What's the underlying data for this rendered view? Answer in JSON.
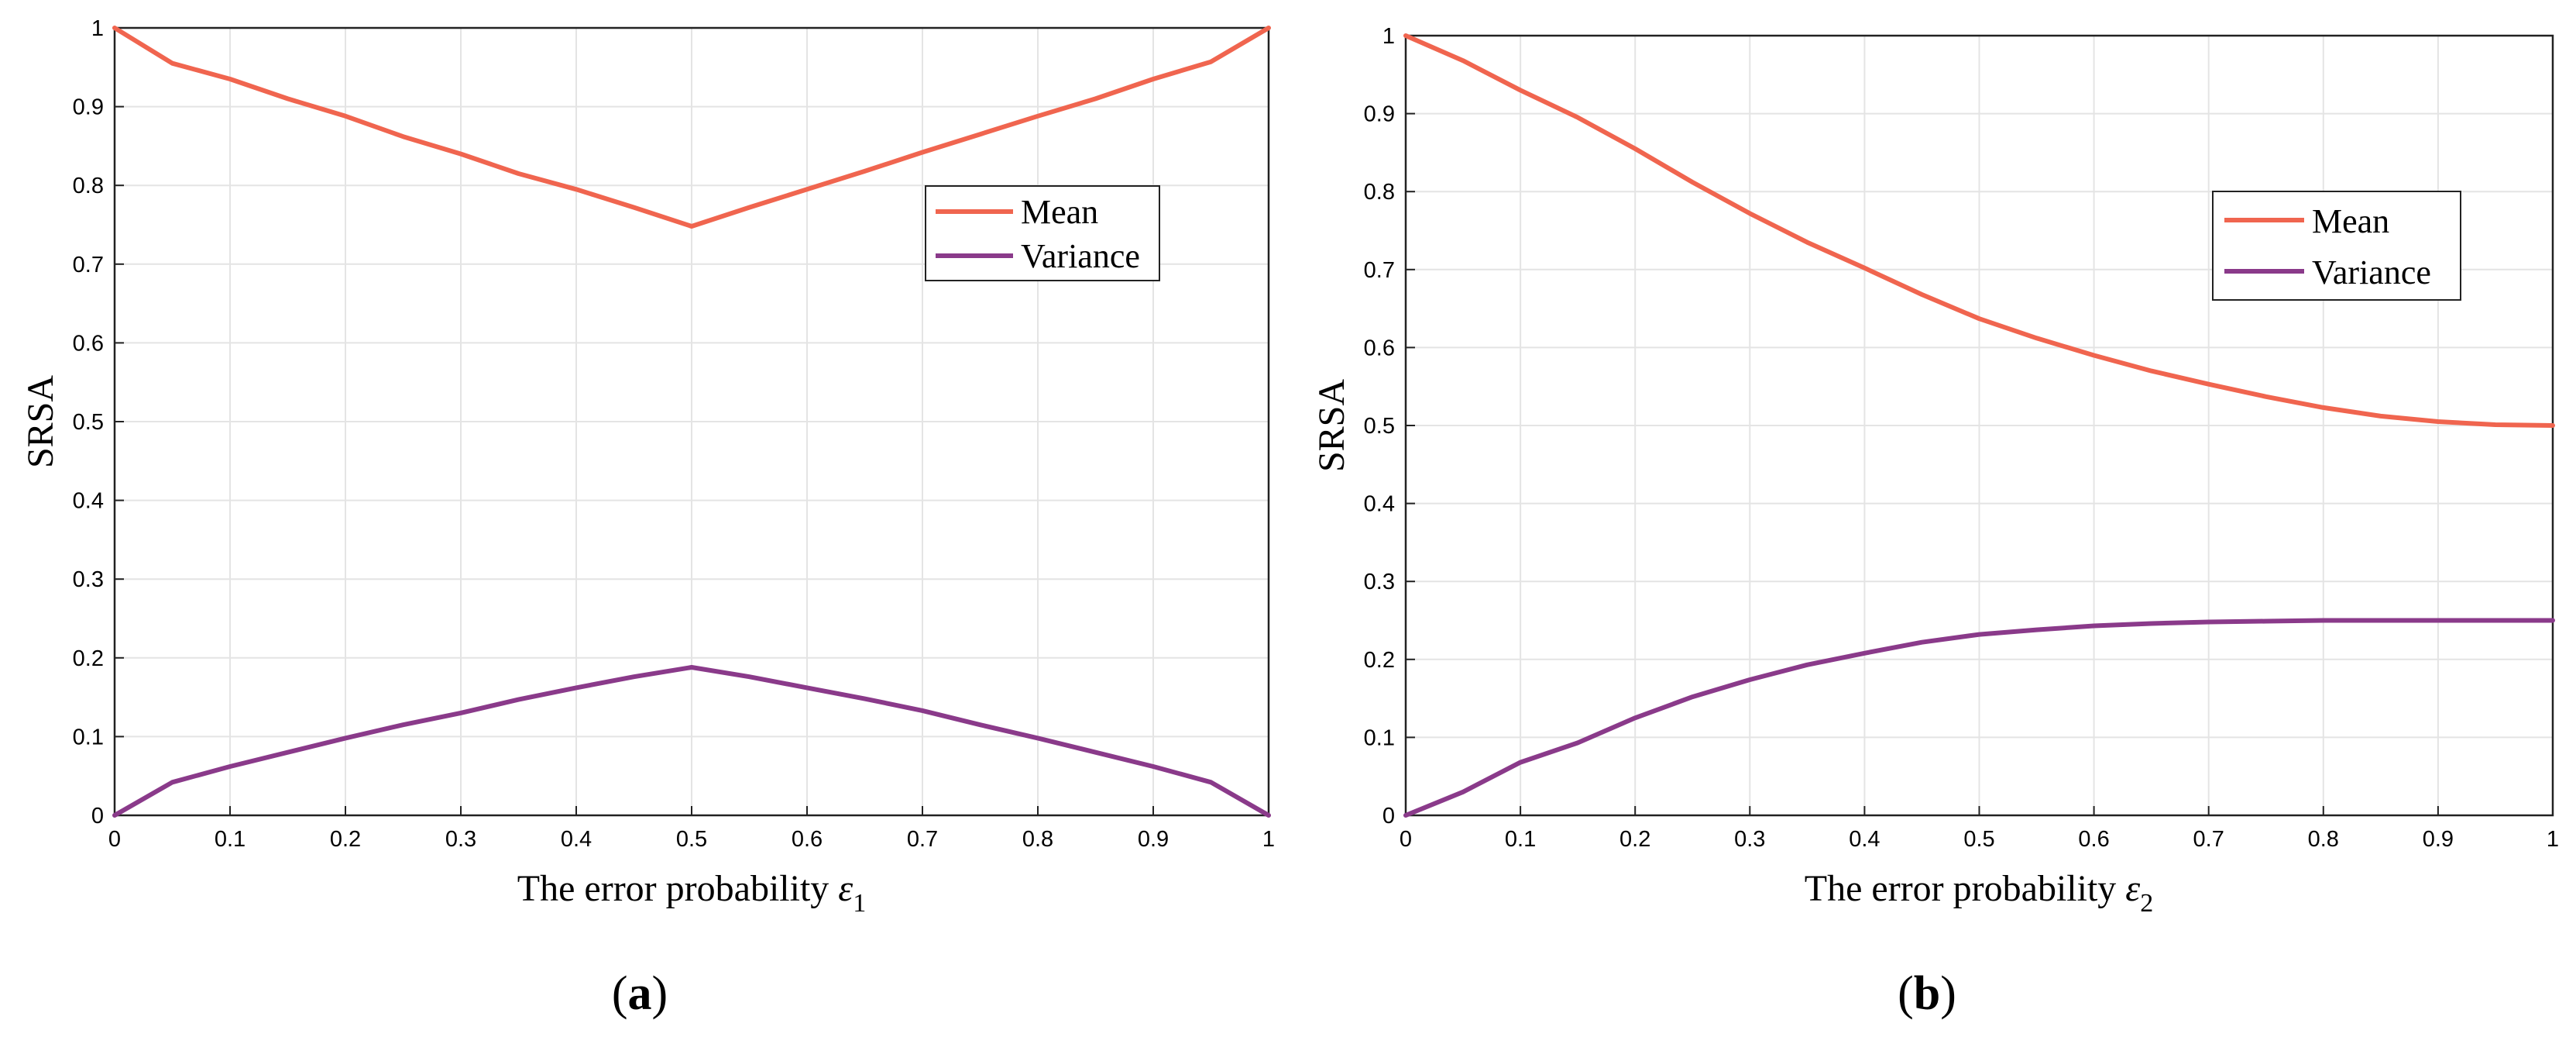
{
  "colors": {
    "mean": "#f0654f",
    "variance": "#8a3a8a",
    "grid": "#e4e4e4",
    "axis": "#222222"
  },
  "charts": [
    {
      "panel": "a",
      "caption_open": "(",
      "caption_letter": "a",
      "caption_close": ")",
      "xlabel_text": "The error probability ",
      "xlabel_symbol": "ε",
      "xlabel_sub": "1",
      "ylabel": "SRSA",
      "x_ticks": [
        "0",
        "0.1",
        "0.2",
        "0.3",
        "0.4",
        "0.5",
        "0.6",
        "0.7",
        "0.8",
        "0.9",
        "1"
      ],
      "y_ticks": [
        "0",
        "0.1",
        "0.2",
        "0.3",
        "0.4",
        "0.5",
        "0.6",
        "0.7",
        "0.8",
        "0.9",
        "1"
      ],
      "legend": [
        "Mean",
        "Variance"
      ]
    },
    {
      "panel": "b",
      "caption_open": "(",
      "caption_letter": "b",
      "caption_close": ")",
      "xlabel_text": "The error probability ",
      "xlabel_symbol": "ε",
      "xlabel_sub": "2",
      "ylabel": "SRSA",
      "x_ticks": [
        "0",
        "0.1",
        "0.2",
        "0.3",
        "0.4",
        "0.5",
        "0.6",
        "0.7",
        "0.8",
        "0.9",
        "1"
      ],
      "y_ticks": [
        "0",
        "0.1",
        "0.2",
        "0.3",
        "0.4",
        "0.5",
        "0.6",
        "0.7",
        "0.8",
        "0.9",
        "1"
      ],
      "legend": [
        "Mean",
        "Variance"
      ]
    }
  ],
  "chart_data": [
    {
      "type": "line",
      "title": "(a)",
      "xlabel": "The error probability ε1",
      "ylabel": "SRSA",
      "xlim": [
        0,
        1
      ],
      "ylim": [
        0,
        1
      ],
      "grid": true,
      "legend_position": "upper-right",
      "x": [
        0,
        0.05,
        0.1,
        0.15,
        0.2,
        0.25,
        0.3,
        0.35,
        0.4,
        0.45,
        0.5,
        0.55,
        0.6,
        0.65,
        0.7,
        0.75,
        0.8,
        0.85,
        0.9,
        0.95,
        1
      ],
      "series": [
        {
          "name": "Mean",
          "values": [
            1.0,
            0.955,
            0.935,
            0.91,
            0.888,
            0.862,
            0.84,
            0.815,
            0.795,
            0.772,
            0.748,
            0.772,
            0.795,
            0.818,
            0.842,
            0.865,
            0.888,
            0.91,
            0.935,
            0.957,
            1.0
          ]
        },
        {
          "name": "Variance",
          "values": [
            0.0,
            0.042,
            0.062,
            0.08,
            0.098,
            0.115,
            0.13,
            0.147,
            0.162,
            0.176,
            0.188,
            0.176,
            0.162,
            0.148,
            0.133,
            0.115,
            0.098,
            0.08,
            0.062,
            0.042,
            0.0
          ]
        }
      ]
    },
    {
      "type": "line",
      "title": "(b)",
      "xlabel": "The error probability ε2",
      "ylabel": "SRSA",
      "xlim": [
        0,
        1
      ],
      "ylim": [
        0,
        1
      ],
      "grid": true,
      "legend_position": "upper-right",
      "x": [
        0,
        0.05,
        0.1,
        0.15,
        0.2,
        0.25,
        0.3,
        0.35,
        0.4,
        0.45,
        0.5,
        0.55,
        0.6,
        0.65,
        0.7,
        0.75,
        0.8,
        0.85,
        0.9,
        0.95,
        1
      ],
      "series": [
        {
          "name": "Mean",
          "values": [
            1.0,
            0.968,
            0.93,
            0.895,
            0.855,
            0.812,
            0.772,
            0.735,
            0.702,
            0.668,
            0.637,
            0.612,
            0.59,
            0.57,
            0.553,
            0.537,
            0.523,
            0.512,
            0.505,
            0.501,
            0.5
          ]
        },
        {
          "name": "Variance",
          "values": [
            0.0,
            0.03,
            0.068,
            0.093,
            0.125,
            0.152,
            0.174,
            0.193,
            0.208,
            0.222,
            0.232,
            0.238,
            0.243,
            0.246,
            0.248,
            0.249,
            0.25,
            0.25,
            0.25,
            0.25,
            0.25
          ]
        }
      ]
    }
  ]
}
